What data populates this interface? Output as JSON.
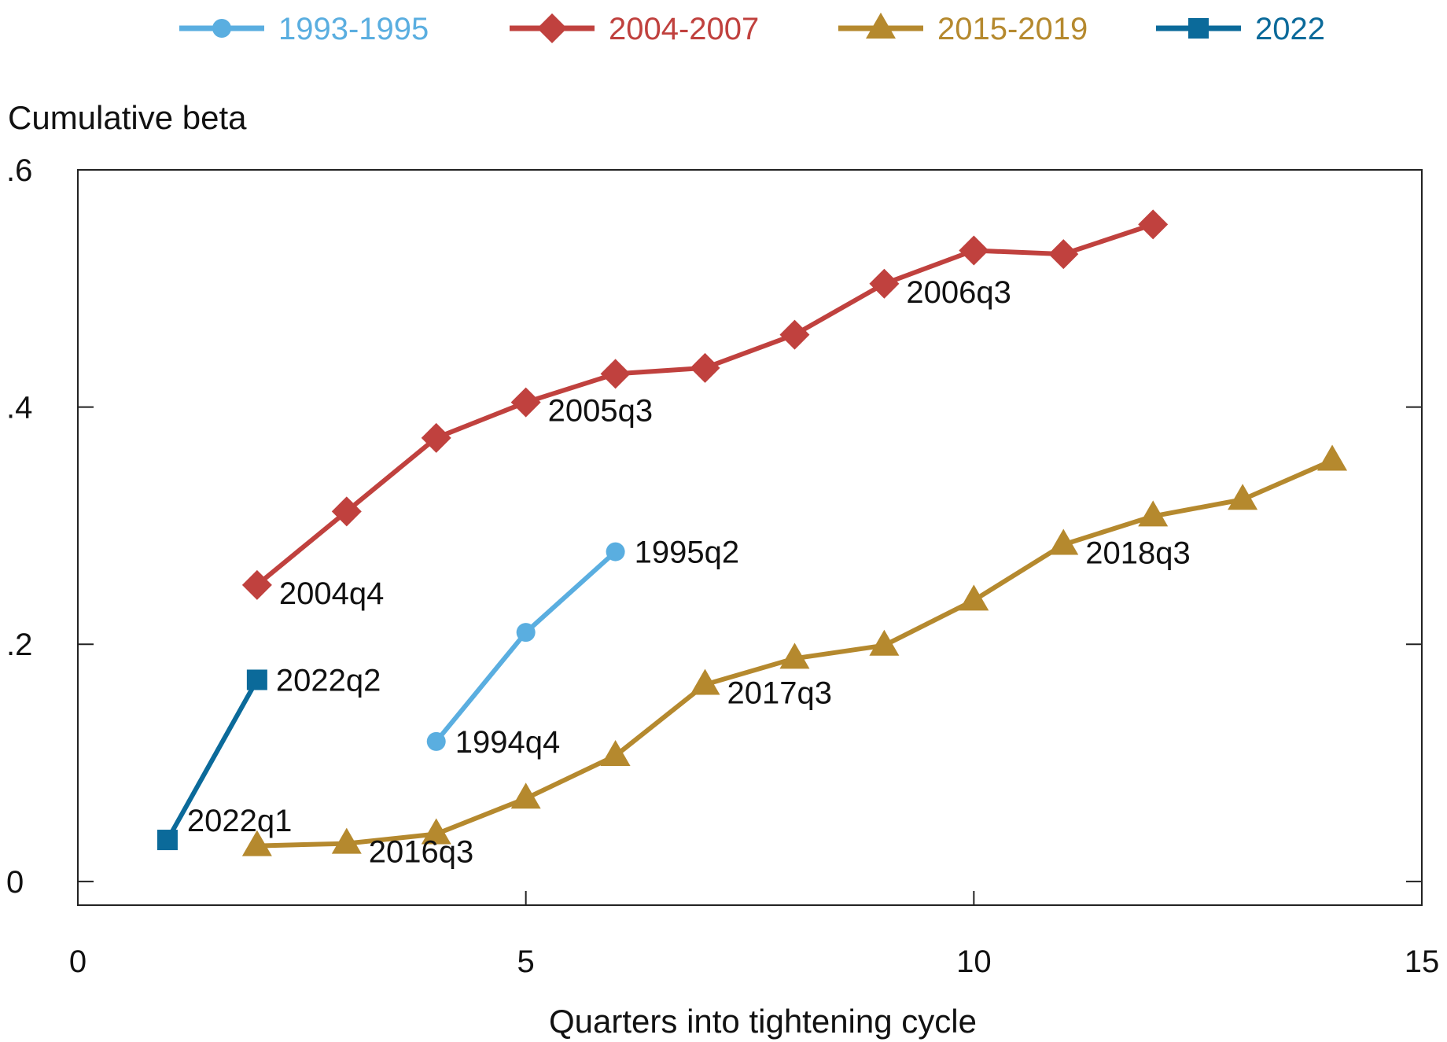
{
  "chart_data": {
    "type": "line",
    "title": "",
    "ylabel": "Cumulative beta",
    "xlabel": "Quarters into tightening cycle",
    "xlim": [
      0,
      15
    ],
    "ylim": [
      -0.02,
      0.6
    ],
    "x_ticks": [
      0,
      5,
      10,
      15
    ],
    "x_tick_labels": [
      "0",
      "5",
      "10",
      "15"
    ],
    "y_ticks": [
      0,
      0.2,
      0.4,
      0.6
    ],
    "y_tick_labels": [
      "0",
      ".2",
      ".4",
      ".6"
    ],
    "grid": false,
    "legend_position": "top",
    "series": [
      {
        "name": "1993-1995",
        "color": "#5aaee0",
        "marker": "circle",
        "x": [
          4,
          5,
          6
        ],
        "y": [
          0.118,
          0.21,
          0.278
        ],
        "annotations": [
          {
            "x": 4,
            "y": 0.118,
            "text": "1994q4",
            "position": "right"
          },
          {
            "x": 6,
            "y": 0.278,
            "text": "1995q2",
            "position": "right"
          }
        ]
      },
      {
        "name": "2004-2007",
        "color": "#c0413e",
        "marker": "diamond",
        "x": [
          2,
          3,
          4,
          5,
          6,
          7,
          8,
          9,
          10,
          11,
          12
        ],
        "y": [
          0.25,
          0.312,
          0.374,
          0.404,
          0.428,
          0.433,
          0.461,
          0.504,
          0.532,
          0.529,
          0.554
        ],
        "annotations": [
          {
            "x": 2,
            "y": 0.25,
            "text": "2004q4",
            "position": "below-right"
          },
          {
            "x": 5,
            "y": 0.404,
            "text": "2005q3",
            "position": "below-right"
          },
          {
            "x": 9,
            "y": 0.504,
            "text": "2006q3",
            "position": "below-right"
          }
        ]
      },
      {
        "name": "2015-2019",
        "color": "#b5892e",
        "marker": "triangle",
        "x": [
          2,
          3,
          4,
          5,
          6,
          7,
          8,
          9,
          10,
          11,
          12,
          13,
          14
        ],
        "y": [
          0.03,
          0.032,
          0.04,
          0.07,
          0.106,
          0.166,
          0.188,
          0.199,
          0.237,
          0.284,
          0.308,
          0.322,
          0.355
        ],
        "annotations": [
          {
            "x": 3,
            "y": 0.032,
            "text": "2016q3",
            "position": "below-right"
          },
          {
            "x": 7,
            "y": 0.166,
            "text": "2017q3",
            "position": "below-right"
          },
          {
            "x": 11,
            "y": 0.284,
            "text": "2018q3",
            "position": "below-right"
          }
        ]
      },
      {
        "name": "2022",
        "color": "#0b6a9a",
        "marker": "square",
        "x": [
          1,
          2
        ],
        "y": [
          0.035,
          0.17
        ],
        "annotations": [
          {
            "x": 1,
            "y": 0.035,
            "text": "2022q1",
            "position": "above-right"
          },
          {
            "x": 2,
            "y": 0.17,
            "text": "2022q2",
            "position": "right"
          }
        ]
      }
    ]
  }
}
